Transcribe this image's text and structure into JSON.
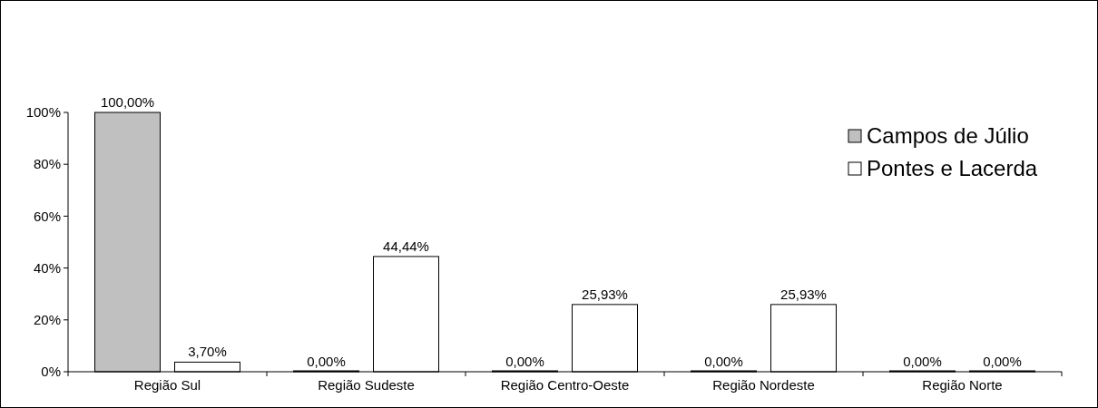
{
  "chart_data": {
    "type": "bar",
    "categories": [
      "Região Sul",
      "Região Sudeste",
      "Região Centro-Oeste",
      "Região Nordeste",
      "Região Norte"
    ],
    "series": [
      {
        "name": "Campos de Júlio",
        "color": "#c0c0c0",
        "values": [
          100,
          0,
          0,
          0,
          0
        ],
        "value_labels": [
          "100,00%",
          "0,00%",
          "0,00%",
          "0,00%",
          "0,00%"
        ]
      },
      {
        "name": "Pontes e Lacerda",
        "color": "#ffffff",
        "values": [
          3.7,
          44.44,
          25.93,
          25.93,
          0
        ],
        "value_labels": [
          "3,70%",
          "44,44%",
          "25,93%",
          "25,93%",
          "0,00%"
        ]
      }
    ],
    "ylim": [
      0,
      100
    ],
    "yticks": [
      {
        "value": 0,
        "label": "0%"
      },
      {
        "value": 20,
        "label": "20%"
      },
      {
        "value": 40,
        "label": "40%"
      },
      {
        "value": 60,
        "label": "60%"
      },
      {
        "value": 80,
        "label": "80%"
      },
      {
        "value": 100,
        "label": "100%"
      }
    ],
    "grid": false,
    "legend": "top right"
  }
}
